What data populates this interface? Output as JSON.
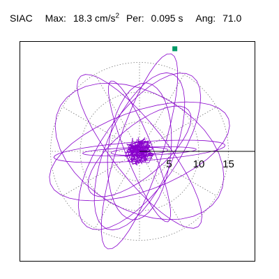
{
  "header": {
    "station": "SIAC",
    "max_label": "Max:",
    "max_value": "18.3",
    "max_unit_base": "cm/s",
    "max_unit_exp": "2",
    "per_label": "Per:",
    "per_value": "0.095 s",
    "ang_label": "Ang:",
    "ang_value": "71.0"
  },
  "chart_data": {
    "type": "line",
    "title": "SIAC",
    "plot_kind": "particle-motion hodogram",
    "units": "cm/s²",
    "max": 18.3,
    "period_s": 0.095,
    "angle_deg": 71.0,
    "radial_ticks": [
      "5",
      "10",
      "15"
    ],
    "radial_tick_values": [
      5,
      10,
      15
    ],
    "rings": [
      5,
      10,
      15
    ],
    "radial_spokes_deg": [
      30,
      60,
      90,
      120,
      150,
      180,
      210,
      240,
      270,
      300,
      330
    ],
    "grid": true,
    "trace_color": "#8800cc",
    "marker_color": "#009966",
    "grid_color": "#777777",
    "max_point": {
      "angle_deg": 71.0,
      "amplitude": 18.3
    },
    "trace_components": [
      {
        "a": 4.8,
        "b": 0.6,
        "theta_deg": 3
      },
      {
        "a": 9.6,
        "b": 0.7,
        "theta_deg": 2
      },
      {
        "a": 14.5,
        "b": 1.6,
        "theta_deg": 4
      },
      {
        "a": 15.5,
        "b": 6.4,
        "theta_deg": 55
      },
      {
        "a": 17.3,
        "b": 3.8,
        "theta_deg": 72
      },
      {
        "a": 14.2,
        "b": 5.7,
        "theta_deg": 67
      },
      {
        "a": 16.1,
        "b": 4.5,
        "theta_deg": 128
      },
      {
        "a": 15.4,
        "b": 9.9,
        "theta_deg": 150
      },
      {
        "a": 16.0,
        "b": 6.7,
        "theta_deg": 20
      },
      {
        "a": 12.8,
        "b": 2.3,
        "theta_deg": 112
      },
      {
        "a": 11.6,
        "b": 5.3,
        "theta_deg": 84
      },
      {
        "a": 10.8,
        "b": 4.2,
        "theta_deg": 40
      }
    ]
  }
}
